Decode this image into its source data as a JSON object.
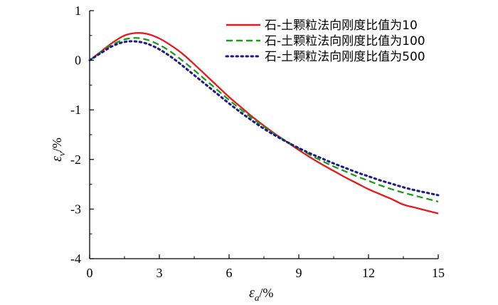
{
  "chart_data": {
    "type": "line",
    "xlabel": {
      "symbol": "ε",
      "subscript": "a",
      "unit": "/%"
    },
    "ylabel": {
      "symbol": "ε",
      "subscript": "v",
      "unit": "/%"
    },
    "xlim": [
      0,
      15
    ],
    "ylim": [
      -4,
      1
    ],
    "x_ticks": [
      0,
      3,
      6,
      9,
      12,
      15
    ],
    "y_ticks": [
      1,
      0,
      -1,
      -2,
      -3,
      -4
    ],
    "grid": false,
    "legend_position": "top-right",
    "series": [
      {
        "name": "石-土颗粒法向刚度比值为10",
        "color": "#e8191c",
        "dash": "solid",
        "points": [
          [
            0,
            0.0
          ],
          [
            0.5,
            0.18
          ],
          [
            1.0,
            0.36
          ],
          [
            1.5,
            0.5
          ],
          [
            2.0,
            0.55
          ],
          [
            2.5,
            0.53
          ],
          [
            3.0,
            0.44
          ],
          [
            3.5,
            0.3
          ],
          [
            4.0,
            0.13
          ],
          [
            4.5,
            -0.08
          ],
          [
            5.0,
            -0.3
          ],
          [
            5.5,
            -0.52
          ],
          [
            6.0,
            -0.74
          ],
          [
            6.5,
            -0.94
          ],
          [
            7.0,
            -1.14
          ],
          [
            7.5,
            -1.32
          ],
          [
            8.0,
            -1.49
          ],
          [
            8.5,
            -1.65
          ],
          [
            9.0,
            -1.81
          ],
          [
            9.5,
            -1.96
          ],
          [
            10.0,
            -2.1
          ],
          [
            10.5,
            -2.23
          ],
          [
            11.0,
            -2.36
          ],
          [
            11.5,
            -2.48
          ],
          [
            12.0,
            -2.6
          ],
          [
            12.5,
            -2.7
          ],
          [
            13.0,
            -2.8
          ],
          [
            13.5,
            -2.91
          ],
          [
            14.0,
            -2.97
          ],
          [
            14.5,
            -3.03
          ],
          [
            15.0,
            -3.09
          ]
        ]
      },
      {
        "name": "石-土颗粒法向刚度比值为100",
        "color": "#1a9c1a",
        "dash": "dashed",
        "points": [
          [
            0,
            0.0
          ],
          [
            0.5,
            0.17
          ],
          [
            1.0,
            0.32
          ],
          [
            1.5,
            0.42
          ],
          [
            2.0,
            0.45
          ],
          [
            2.5,
            0.41
          ],
          [
            3.0,
            0.31
          ],
          [
            3.5,
            0.17
          ],
          [
            4.0,
            -0.01
          ],
          [
            4.5,
            -0.2
          ],
          [
            5.0,
            -0.4
          ],
          [
            5.5,
            -0.6
          ],
          [
            6.0,
            -0.8
          ],
          [
            6.5,
            -0.99
          ],
          [
            7.0,
            -1.17
          ],
          [
            7.5,
            -1.34
          ],
          [
            8.0,
            -1.5
          ],
          [
            8.5,
            -1.64
          ],
          [
            9.0,
            -1.78
          ],
          [
            9.5,
            -1.91
          ],
          [
            10.0,
            -2.03
          ],
          [
            10.5,
            -2.14
          ],
          [
            11.0,
            -2.24
          ],
          [
            11.5,
            -2.34
          ],
          [
            12.0,
            -2.43
          ],
          [
            12.5,
            -2.52
          ],
          [
            13.0,
            -2.6
          ],
          [
            13.5,
            -2.67
          ],
          [
            14.0,
            -2.73
          ],
          [
            14.5,
            -2.79
          ],
          [
            15.0,
            -2.85
          ]
        ]
      },
      {
        "name": "石-土颗粒法向刚度比值为500",
        "color": "#1a1a8c",
        "dash": "dotted",
        "points": [
          [
            0,
            0.0
          ],
          [
            0.5,
            0.15
          ],
          [
            1.0,
            0.29
          ],
          [
            1.5,
            0.37
          ],
          [
            2.0,
            0.38
          ],
          [
            2.5,
            0.33
          ],
          [
            3.0,
            0.22
          ],
          [
            3.5,
            0.07
          ],
          [
            4.0,
            -0.11
          ],
          [
            4.5,
            -0.3
          ],
          [
            5.0,
            -0.49
          ],
          [
            5.5,
            -0.68
          ],
          [
            6.0,
            -0.87
          ],
          [
            6.5,
            -1.05
          ],
          [
            7.0,
            -1.22
          ],
          [
            7.5,
            -1.38
          ],
          [
            8.0,
            -1.52
          ],
          [
            8.5,
            -1.65
          ],
          [
            9.0,
            -1.77
          ],
          [
            9.5,
            -1.88
          ],
          [
            10.0,
            -1.98
          ],
          [
            10.5,
            -2.08
          ],
          [
            11.0,
            -2.17
          ],
          [
            11.5,
            -2.26
          ],
          [
            12.0,
            -2.34
          ],
          [
            12.5,
            -2.42
          ],
          [
            13.0,
            -2.49
          ],
          [
            13.5,
            -2.56
          ],
          [
            14.0,
            -2.62
          ],
          [
            14.5,
            -2.67
          ],
          [
            15.0,
            -2.72
          ]
        ]
      }
    ]
  }
}
